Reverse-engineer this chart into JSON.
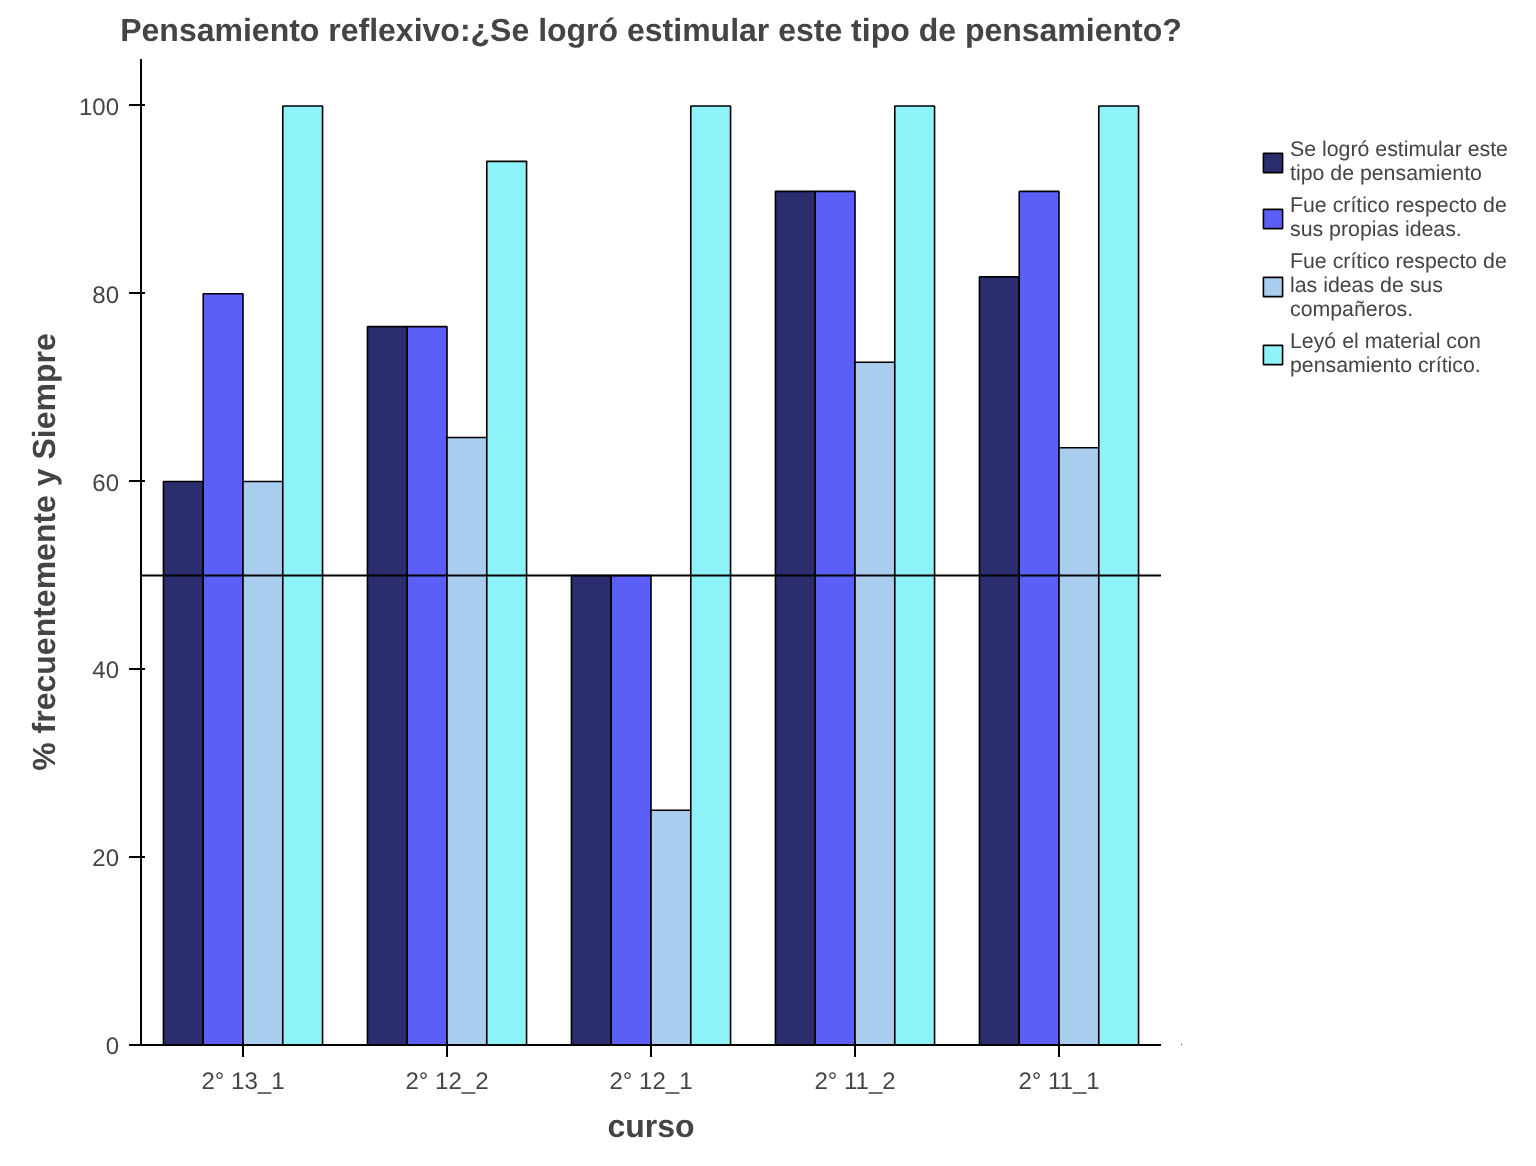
{
  "chart_data": {
    "type": "bar",
    "title": "Pensamiento reflexivo:¿Se logró estimular este tipo de pensamiento?",
    "xlabel": "curso",
    "ylabel": "% frecuentemente y Siempre",
    "categories": [
      "2° 13_1",
      "2° 12_2",
      "2° 12_1",
      "2° 11_2",
      "2° 11_1"
    ],
    "series": [
      {
        "name": "Se logró estimular este tipo de pensamiento",
        "color": "#2b2d6e",
        "values": [
          60,
          76.5,
          50,
          90.9,
          81.8
        ]
      },
      {
        "name": "Fue crítico respecto de sus propias ideas.",
        "color": "#5b5ef7",
        "values": [
          80,
          76.5,
          50,
          90.9,
          90.9
        ]
      },
      {
        "name": "Fue crítico respecto de las ideas de sus compañeros.",
        "color": "#a9cdef",
        "values": [
          60,
          64.7,
          25,
          72.7,
          63.6
        ]
      },
      {
        "name": "Leyó el material con pensamiento crítico.",
        "color": "#8ef2f9",
        "values": [
          100,
          94.1,
          100,
          100,
          100
        ]
      }
    ],
    "ylim": [
      0,
      105
    ],
    "yticks": [
      0,
      20,
      40,
      60,
      80,
      100
    ],
    "ref_lines": [
      {
        "axis": "y",
        "value": 50,
        "color": "#000000"
      }
    ],
    "legend": "right",
    "grid": false
  }
}
